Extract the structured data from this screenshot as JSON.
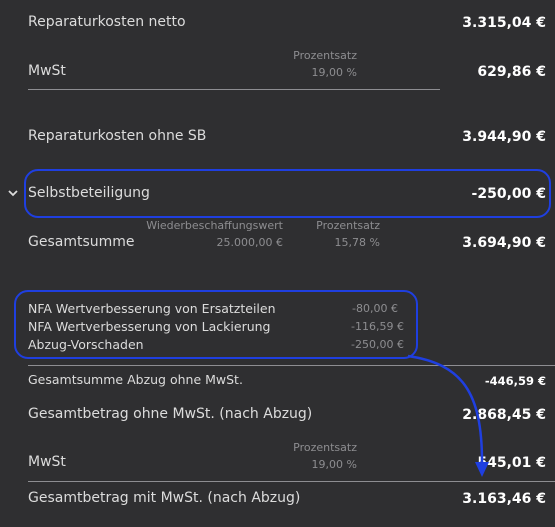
{
  "rows": {
    "repair_net": {
      "label": "Reparaturkosten netto",
      "value": "3.315,04 €"
    },
    "vat1": {
      "label": "MwSt",
      "pct_caption": "Prozentsatz",
      "pct": "19,00 %",
      "value": "629,86 €"
    },
    "repair_no_sb": {
      "label": "Reparaturkosten ohne SB",
      "value": "3.944,90 €"
    },
    "deductible": {
      "label": "Selbstbeteiligung",
      "value": "-250,00 €"
    },
    "total": {
      "label": "Gesamtsumme",
      "wbw_caption": "Wiederbeschaffungswert",
      "wbw": "25.000,00 €",
      "pct_caption": "Prozentsatz",
      "pct": "15,78 %",
      "value": "3.694,90 €"
    },
    "deductions": [
      {
        "label": "NFA Wertverbesserung von Ersatzteilen",
        "value": "-80,00 €"
      },
      {
        "label": "NFA Wertverbesserung von Lackierung",
        "value": "-116,59 €"
      },
      {
        "label": "Abzug-Vorschaden",
        "value": "-250,00 €"
      }
    ],
    "total_deduction": {
      "label": "Gesamtsumme Abzug ohne MwSt.",
      "value": "-446,59 €"
    },
    "amount_net": {
      "label": "Gesamtbetrag ohne MwSt. (nach Abzug)",
      "value": "2.868,45 €"
    },
    "vat2": {
      "label": "MwSt",
      "pct_caption": "Prozentsatz",
      "pct": "19,00 %",
      "value": "545,01 €"
    },
    "amount_gross": {
      "label": "Gesamtbetrag mit MwSt. (nach Abzug)",
      "value": "3.163,46 €"
    }
  },
  "colors": {
    "background": "#2f2f31",
    "highlight": "#1f3fe0"
  },
  "icons": {
    "expand": "chevron-down-icon"
  }
}
